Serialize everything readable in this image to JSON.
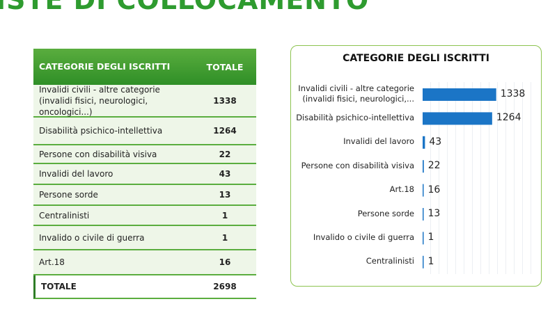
{
  "header": {
    "title": "ISTE DI COLLOCAMENTO"
  },
  "table": {
    "columns": [
      "CATEGORIE DEGLI ISCRITTI",
      "TOTALE"
    ],
    "rows": [
      [
        "Invalidi civili - altre categorie (invalidi fisici, neurologici, oncologici...)",
        1338
      ],
      [
        "Disabilità psichico-intellettiva",
        1264
      ],
      [
        "Persone con disabilità visiva",
        22
      ],
      [
        "Invalidi del lavoro",
        43
      ],
      [
        "Persone sorde",
        13
      ],
      [
        "Centralinisti",
        1
      ],
      [
        "Invalido o civile di guerra",
        1
      ],
      [
        "Art.18",
        16
      ]
    ],
    "total": [
      "TOTALE",
      2698
    ]
  },
  "chart_data": {
    "type": "bar",
    "orientation": "horizontal",
    "title": "CATEGORIE DEGLI ISCRITTI",
    "categories": [
      "Invalidi civili - altre categorie (invalidi fisici, neurologici,...",
      "Disabilità psichico-intellettiva",
      "Invalidi del lavoro",
      "Persone con disabilità visiva",
      "Art.18",
      "Persone sorde",
      "Invalido o civile di guerra",
      "Centralinisti"
    ],
    "values": [
      1338,
      1264,
      43,
      22,
      16,
      13,
      1,
      1
    ],
    "color": "#1b75c6",
    "xlim": [
      0,
      2000
    ]
  }
}
